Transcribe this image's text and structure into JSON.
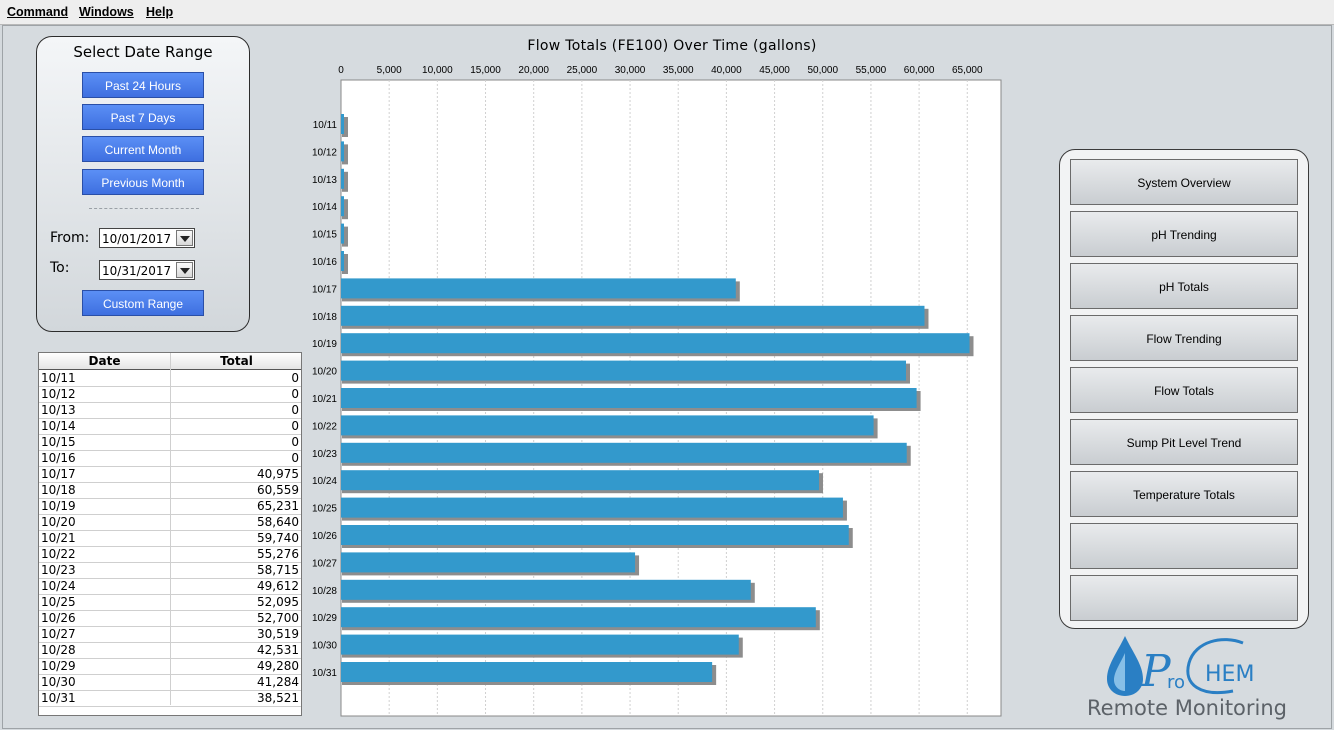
{
  "menu": {
    "command": "Command",
    "windows": "Windows",
    "help": "Help"
  },
  "range": {
    "title": "Select Date Range",
    "past24": "Past 24 Hours",
    "past7": "Past 7 Days",
    "current_month": "Current Month",
    "previous_month": "Previous Month",
    "from_label": "From:",
    "to_label": "To:",
    "from_value": "10/01/2017",
    "to_value": "10/31/2017",
    "custom": "Custom Range"
  },
  "table": {
    "col_date": "Date",
    "col_total": "Total",
    "rows": [
      {
        "date": "10/11",
        "total": "0"
      },
      {
        "date": "10/12",
        "total": "0"
      },
      {
        "date": "10/13",
        "total": "0"
      },
      {
        "date": "10/14",
        "total": "0"
      },
      {
        "date": "10/15",
        "total": "0"
      },
      {
        "date": "10/16",
        "total": "0"
      },
      {
        "date": "10/17",
        "total": "40,975"
      },
      {
        "date": "10/18",
        "total": "60,559"
      },
      {
        "date": "10/19",
        "total": "65,231"
      },
      {
        "date": "10/20",
        "total": "58,640"
      },
      {
        "date": "10/21",
        "total": "59,740"
      },
      {
        "date": "10/22",
        "total": "55,276"
      },
      {
        "date": "10/23",
        "total": "58,715"
      },
      {
        "date": "10/24",
        "total": "49,612"
      },
      {
        "date": "10/25",
        "total": "52,095"
      },
      {
        "date": "10/26",
        "total": "52,700"
      },
      {
        "date": "10/27",
        "total": "30,519"
      },
      {
        "date": "10/28",
        "total": "42,531"
      },
      {
        "date": "10/29",
        "total": "49,280"
      },
      {
        "date": "10/30",
        "total": "41,284"
      },
      {
        "date": "10/31",
        "total": "38,521"
      }
    ]
  },
  "chart_data": {
    "type": "bar",
    "orientation": "horizontal",
    "title": "Flow Totals (FE100) Over Time (gallons)",
    "categories": [
      "10/11",
      "10/12",
      "10/13",
      "10/14",
      "10/15",
      "10/16",
      "10/17",
      "10/18",
      "10/19",
      "10/20",
      "10/21",
      "10/22",
      "10/23",
      "10/24",
      "10/25",
      "10/26",
      "10/27",
      "10/28",
      "10/29",
      "10/30",
      "10/31"
    ],
    "values": [
      0,
      0,
      0,
      0,
      0,
      0,
      40975,
      60559,
      65231,
      58640,
      59740,
      55276,
      58715,
      49612,
      52095,
      52700,
      30519,
      42531,
      49280,
      41284,
      38521
    ],
    "ticks": [
      "0",
      "5,000",
      "10,000",
      "15,000",
      "20,000",
      "25,000",
      "30,000",
      "35,000",
      "40,000",
      "45,000",
      "50,000",
      "55,000",
      "60,000",
      "65,000"
    ],
    "xlim": [
      0,
      68500
    ],
    "axis_position": "top",
    "grid": true,
    "bar_color": "#3399cc"
  },
  "nav": {
    "buttons": [
      "System Overview",
      "pH Trending",
      "pH Totals",
      "Flow Trending",
      "Flow Totals",
      "Sump Pit Level Trend",
      "Temperature Totals",
      "",
      ""
    ]
  },
  "logo": {
    "text": "Remote Monitoring",
    "brand_color": "#2a7fc4"
  }
}
